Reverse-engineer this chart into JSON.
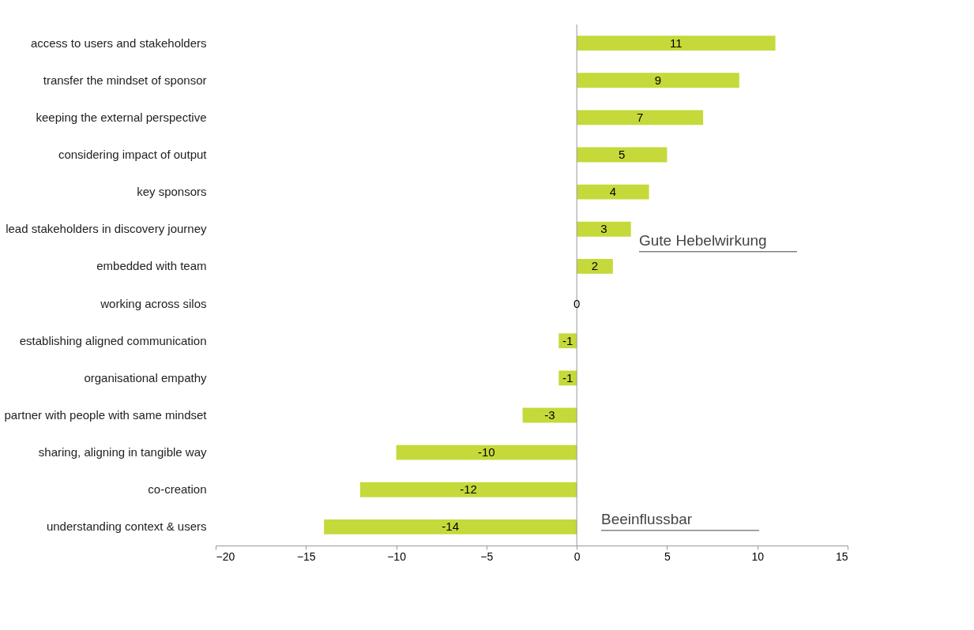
{
  "chart_data": {
    "type": "bar",
    "orientation": "horizontal",
    "categories": [
      "access to users and stakeholders",
      "transfer the mindset of sponsor",
      "keeping the external perspective",
      "considering impact of output",
      "key sponsors",
      "lead stakeholders in discovery journey",
      "embedded with team",
      "working across silos",
      "establishing aligned communication",
      "organisational empathy",
      "partner with people with same mindset",
      "sharing, aligning in tangible way",
      "co-creation",
      "understanding context & users"
    ],
    "values": [
      11,
      9,
      7,
      5,
      4,
      3,
      2,
      0,
      -1,
      -1,
      -3,
      -10,
      -12,
      -14
    ],
    "color": "#c5d93a",
    "xlim": [
      -20,
      15
    ],
    "xticks": [
      -20,
      -15,
      -10,
      -5,
      0,
      5,
      10,
      15
    ],
    "data_labels": true,
    "grid": false,
    "ref_lines": [
      {
        "axis": "x",
        "value": 0,
        "color": "#999999"
      }
    ],
    "annotations": [
      "Gute Hebelwirkung",
      "Beeinflussbar"
    ]
  }
}
